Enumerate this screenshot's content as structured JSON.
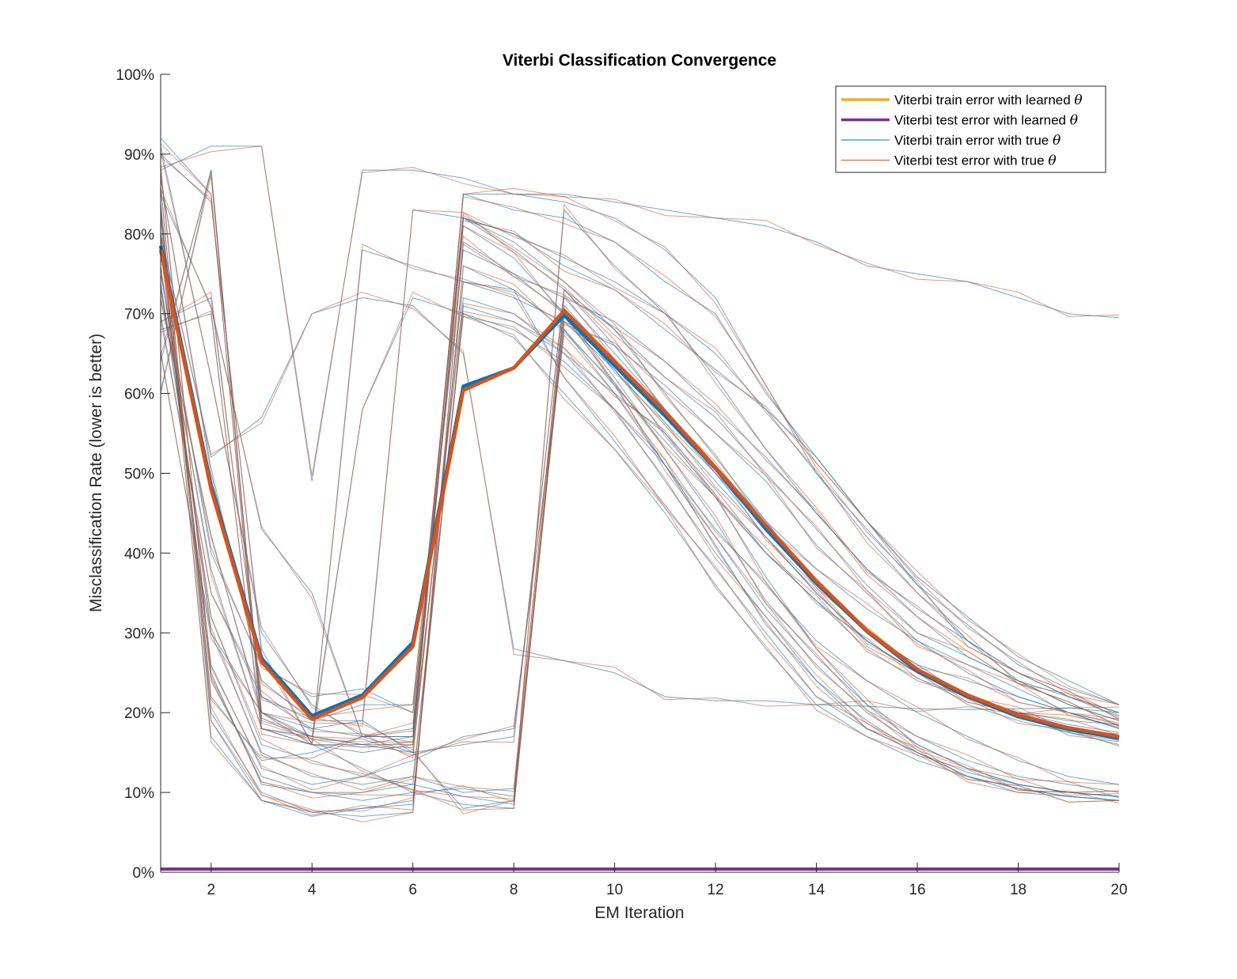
{
  "chart_data": {
    "type": "line",
    "title": "Viterbi Classification Convergence",
    "xlabel": "EM Iteration",
    "ylabel": "Misclassification Rate (lower is better)",
    "xlim": [
      1,
      20
    ],
    "ylim": [
      0,
      100
    ],
    "xticks": [
      2,
      4,
      6,
      8,
      10,
      12,
      14,
      16,
      18,
      20
    ],
    "yticks": [
      0,
      10,
      20,
      30,
      40,
      50,
      60,
      70,
      80,
      90,
      100
    ],
    "ytick_labels": [
      "0%",
      "10%",
      "20%",
      "30%",
      "40%",
      "50%",
      "60%",
      "70%",
      "80%",
      "90%",
      "100%"
    ],
    "legend_position": "top-right",
    "grid": false,
    "colors": {
      "orange": "#EDB120",
      "purple": "#7E2F8E",
      "blue": "#0072BD",
      "red": "#D95319"
    },
    "legend": [
      {
        "text": "Viterbi train error with learned",
        "symbol": "θ",
        "color": "#EDB120",
        "width": 3.5
      },
      {
        "text": "Viterbi test error with learned",
        "symbol": "θ",
        "color": "#7E2F8E",
        "width": 3.5
      },
      {
        "text": "Viterbi train error with true",
        "symbol": "θ",
        "color": "#0072BD",
        "width": 1
      },
      {
        "text": "Viterbi test error with true",
        "symbol": "θ",
        "color": "#D95319",
        "width": 1
      }
    ],
    "learned_series": [
      {
        "name": "Viterbi train error with learned θ",
        "color": "#EDB120",
        "values": [
          0.4,
          0.4,
          0.4,
          0.4,
          0.4,
          0.4,
          0.4,
          0.4,
          0.4,
          0.4,
          0.4,
          0.4,
          0.4,
          0.4,
          0.4,
          0.4,
          0.4,
          0.4,
          0.4,
          0.4
        ]
      },
      {
        "name": "Viterbi test error with learned θ",
        "color": "#7E2F8E",
        "values": [
          0.4,
          0.4,
          0.4,
          0.4,
          0.4,
          0.4,
          0.4,
          0.4,
          0.4,
          0.4,
          0.4,
          0.4,
          0.4,
          0.4,
          0.4,
          0.4,
          0.4,
          0.4,
          0.4,
          0.4
        ]
      }
    ],
    "mean_series": [
      {
        "color": "#0072BD",
        "values": [
          78.5,
          48.5,
          26.8,
          19.6,
          22.2,
          28.8,
          60.9,
          63.2,
          69.8,
          63.5,
          57.2,
          50.6,
          43,
          36.2,
          30.2,
          25.2,
          22,
          19.5,
          17.9,
          16.8
        ]
      },
      {
        "color": "#D95319",
        "values": [
          78,
          48,
          26.4,
          19.2,
          21.9,
          28.3,
          60.4,
          63.2,
          70.4,
          64,
          57.7,
          50.7,
          43.5,
          36.5,
          30.3,
          25.4,
          22.2,
          19.7,
          18.1,
          17
        ]
      }
    ],
    "runs": [
      [
        92,
        85,
        18,
        17,
        16,
        17,
        85,
        85,
        85,
        84,
        83,
        82,
        81,
        79,
        76,
        75,
        74,
        72,
        70,
        69.5
      ],
      [
        88,
        91,
        91,
        49,
        88,
        88,
        87,
        85,
        84,
        82,
        78,
        72,
        61,
        50,
        43,
        36,
        29,
        25,
        22,
        20
      ],
      [
        80,
        52,
        57,
        70,
        72,
        71,
        65,
        28,
        26.5,
        25,
        22,
        21.5,
        21.5,
        21,
        20.8,
        20.5,
        20.4,
        20.5,
        20.6,
        20
      ],
      [
        85,
        71,
        43,
        35,
        17,
        17,
        82,
        80,
        76,
        73,
        68,
        63,
        58,
        52,
        44,
        36,
        31,
        26,
        23,
        21
      ],
      [
        75,
        40,
        26,
        22,
        23,
        20,
        78,
        75,
        72,
        69,
        64,
        58,
        52,
        45,
        38,
        32,
        27,
        24,
        21,
        19
      ],
      [
        70,
        35,
        22,
        18,
        17,
        15,
        74,
        72,
        69,
        66,
        61,
        55,
        49,
        41,
        35,
        29,
        26,
        23,
        20,
        18
      ],
      [
        65,
        30,
        20,
        16,
        16,
        16,
        72,
        70,
        65,
        60,
        55,
        48,
        40,
        34,
        28,
        24,
        22,
        20,
        19,
        18.5
      ],
      [
        90,
        84,
        28,
        16,
        15,
        16,
        82,
        79,
        74,
        68,
        60,
        52,
        44,
        36,
        30,
        26,
        24,
        22,
        20,
        18
      ],
      [
        88,
        25,
        11,
        10,
        10,
        11,
        70,
        68,
        64,
        58,
        51,
        43,
        36,
        29,
        24,
        20,
        17,
        14,
        12,
        11
      ],
      [
        86,
        20,
        10,
        7.5,
        7,
        7.5,
        79,
        75,
        70,
        62,
        53,
        44,
        34,
        27,
        21,
        17,
        14,
        12,
        11,
        10
      ],
      [
        84,
        19,
        9,
        7.5,
        8,
        8.5,
        76,
        73,
        68,
        61,
        51,
        42,
        33,
        26,
        20,
        16,
        13,
        11,
        10,
        9.5
      ],
      [
        82,
        17,
        9,
        7,
        8,
        9,
        71,
        69,
        65,
        58,
        49,
        40,
        32,
        24,
        19,
        15,
        12,
        10,
        9.5,
        9
      ],
      [
        80,
        24,
        12,
        10,
        9,
        10,
        10.5,
        9.5,
        69,
        63,
        55,
        47,
        37,
        28,
        21,
        16,
        13,
        11,
        10,
        9.5
      ],
      [
        78,
        26,
        13,
        11,
        12,
        14,
        17,
        18,
        68,
        60,
        51,
        41,
        31,
        24,
        18,
        15,
        12,
        10.5,
        9.5,
        9
      ],
      [
        76,
        30,
        15,
        12,
        11,
        12,
        10,
        10.5,
        72,
        65,
        58,
        50,
        42,
        35,
        29,
        25,
        21,
        19,
        17.5,
        16.5
      ],
      [
        74,
        32,
        16,
        14,
        12,
        11,
        9.5,
        8.5,
        71,
        64,
        57,
        50,
        43,
        36,
        30,
        26,
        22,
        20,
        18,
        17
      ],
      [
        73,
        38,
        18,
        16,
        13,
        10,
        8.5,
        8,
        70,
        63,
        56,
        49,
        42,
        35,
        29,
        25,
        22,
        20,
        18.5,
        17.5
      ],
      [
        72,
        42,
        20,
        17,
        16,
        15,
        16,
        17,
        73,
        66,
        58,
        51,
        44,
        38,
        33,
        29,
        25,
        22,
        20,
        18.5
      ],
      [
        83,
        22,
        14,
        15,
        17,
        18,
        85,
        83,
        82,
        79,
        74,
        70,
        60,
        52,
        44,
        37,
        32,
        27,
        24,
        21
      ],
      [
        87,
        50,
        24,
        19,
        21,
        21,
        82,
        78,
        73,
        68,
        62,
        57,
        50,
        43,
        36,
        30,
        27,
        24,
        22,
        20
      ],
      [
        91,
        62,
        30,
        21,
        17,
        17,
        81,
        77,
        70,
        61,
        54,
        47,
        40,
        34,
        29,
        25,
        22,
        19.5,
        17.5,
        16
      ],
      [
        60,
        88,
        20,
        18,
        19,
        15,
        8,
        9,
        83,
        76,
        70,
        62,
        53,
        45,
        38,
        33,
        29,
        25,
        22,
        19.5
      ],
      [
        68,
        70,
        18,
        16,
        78,
        76,
        74,
        73,
        62,
        54,
        46,
        38,
        30,
        22,
        18,
        15,
        12.5,
        11,
        10,
        9.5
      ],
      [
        64,
        88,
        19,
        17,
        58,
        72,
        70,
        67,
        60,
        53,
        45,
        36,
        28,
        21,
        17,
        14,
        12,
        10.5,
        9.5,
        9
      ],
      [
        69,
        72,
        22,
        19,
        19,
        83,
        82,
        80,
        77,
        74,
        70,
        65,
        58,
        50,
        42,
        35,
        29,
        24,
        21,
        19
      ]
    ]
  }
}
